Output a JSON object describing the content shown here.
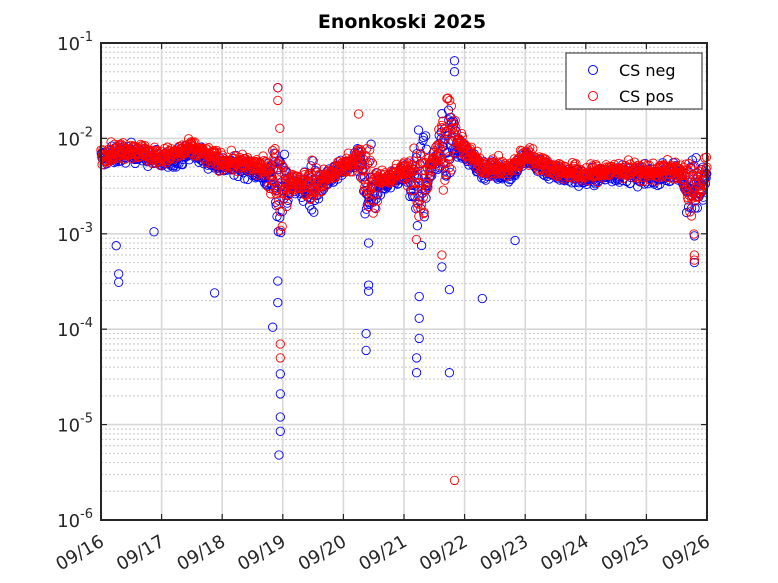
{
  "chart_data": {
    "type": "scatter",
    "title": "Enonkoski 2025",
    "xlabel": "",
    "ylabel": "",
    "yscale": "log",
    "ylim": [
      1e-06,
      0.1
    ],
    "xlim": [
      "2025-09-16",
      "2025-09-26"
    ],
    "x_tick_labels": [
      "09/16",
      "09/17",
      "09/18",
      "09/19",
      "09/20",
      "09/21",
      "09/22",
      "09/23",
      "09/24",
      "09/25",
      "09/26"
    ],
    "y_tick_labels": [
      {
        "base": "10",
        "exp": "-6"
      },
      {
        "base": "10",
        "exp": "-5"
      },
      {
        "base": "10",
        "exp": "-4"
      },
      {
        "base": "10",
        "exp": "-3"
      },
      {
        "base": "10",
        "exp": "-2"
      },
      {
        "base": "10",
        "exp": "-1"
      }
    ],
    "grid": true,
    "legend_position": "top-right",
    "marker": "open-circle",
    "series": [
      {
        "name": "CS neg",
        "color": "#0000ff",
        "baseline": [
          [
            "2025-09-16",
            0.0065
          ],
          [
            "2025-09-16T12:00",
            0.0075
          ],
          [
            "2025-09-17",
            0.006
          ],
          [
            "2025-09-17T12:00",
            0.0075
          ],
          [
            "2025-09-18",
            0.0055
          ],
          [
            "2025-09-18T12:00",
            0.005
          ],
          [
            "2025-09-18T18:00",
            0.004
          ],
          [
            "2025-09-19",
            0.0035
          ],
          [
            "2025-09-19T12:00",
            0.003
          ],
          [
            "2025-09-20",
            0.005
          ],
          [
            "2025-09-20T06:00",
            0.006
          ],
          [
            "2025-09-20T10:00",
            0.003
          ],
          [
            "2025-09-21",
            0.0045
          ],
          [
            "2025-09-21T06:00",
            0.003
          ],
          [
            "2025-09-21T12:00",
            0.006
          ],
          [
            "2025-09-21T18:00",
            0.011
          ],
          [
            "2025-09-22",
            0.0075
          ],
          [
            "2025-09-22T06:00",
            0.005
          ],
          [
            "2025-09-22T18:00",
            0.0045
          ],
          [
            "2025-09-23",
            0.0065
          ],
          [
            "2025-09-23T12:00",
            0.0045
          ],
          [
            "2025-09-24",
            0.004
          ],
          [
            "2025-09-24T12:00",
            0.0045
          ],
          [
            "2025-09-25",
            0.0042
          ],
          [
            "2025-09-25T12:00",
            0.0045
          ],
          [
            "2025-09-25T20:00",
            0.0025
          ],
          [
            "2025-09-26",
            0.0045
          ]
        ],
        "outliers": [
          [
            "2025-09-16T06:00",
            0.00075
          ],
          [
            "2025-09-16T07:00",
            0.00038
          ],
          [
            "2025-09-16T07:00",
            0.00031
          ],
          [
            "2025-09-16T21:00",
            0.00105
          ],
          [
            "2025-09-17T21:00",
            0.00024
          ],
          [
            "2025-09-18T20:00",
            0.000105
          ],
          [
            "2025-09-18T22:00",
            0.00032
          ],
          [
            "2025-09-18T22:00",
            0.00019
          ],
          [
            "2025-09-18T23:00",
            3.4e-05
          ],
          [
            "2025-09-18T23:00",
            2.1e-05
          ],
          [
            "2025-09-18T23:00",
            1.2e-05
          ],
          [
            "2025-09-18T23:00",
            8.5e-06
          ],
          [
            "2025-09-18T22:30",
            4.8e-06
          ],
          [
            "2025-09-18T22:00",
            0.034
          ],
          [
            "2025-09-20T10:00",
            0.00029
          ],
          [
            "2025-09-20T10:00",
            0.00025
          ],
          [
            "2025-09-20T09:00",
            9e-05
          ],
          [
            "2025-09-20T09:00",
            6e-05
          ],
          [
            "2025-09-20T10:00",
            0.0008
          ],
          [
            "2025-09-21T05:00",
            3.5e-05
          ],
          [
            "2025-09-21T05:00",
            5e-05
          ],
          [
            "2025-09-21T06:00",
            0.00013
          ],
          [
            "2025-09-21T06:00",
            8e-05
          ],
          [
            "2025-09-21T06:00",
            0.00022
          ],
          [
            "2025-09-21T18:00",
            3.5e-05
          ],
          [
            "2025-09-21T18:00",
            0.00026
          ],
          [
            "2025-09-21T15:00",
            0.00045
          ],
          [
            "2025-09-22T07:00",
            0.00021
          ],
          [
            "2025-09-22T20:00",
            0.00085
          ],
          [
            "2025-09-21T20:00",
            0.065
          ],
          [
            "2025-09-21T20:00",
            0.05
          ],
          [
            "2025-09-25T19:00",
            0.0005
          ],
          [
            "2025-09-25T19:00",
            0.00095
          ]
        ]
      },
      {
        "name": "CS pos",
        "color": "#ff0000",
        "baseline": [
          [
            "2025-09-16",
            0.0065
          ],
          [
            "2025-09-16T12:00",
            0.0075
          ],
          [
            "2025-09-17",
            0.006
          ],
          [
            "2025-09-17T12:00",
            0.0075
          ],
          [
            "2025-09-18",
            0.0055
          ],
          [
            "2025-09-18T12:00",
            0.005
          ],
          [
            "2025-09-18T18:00",
            0.0045
          ],
          [
            "2025-09-19",
            0.0035
          ],
          [
            "2025-09-19T12:00",
            0.003
          ],
          [
            "2025-09-20",
            0.005
          ],
          [
            "2025-09-20T06:00",
            0.006
          ],
          [
            "2025-09-20T10:00",
            0.003
          ],
          [
            "2025-09-21",
            0.0045
          ],
          [
            "2025-09-21T06:00",
            0.003
          ],
          [
            "2025-09-21T12:00",
            0.006
          ],
          [
            "2025-09-21T18:00",
            0.011
          ],
          [
            "2025-09-22",
            0.0075
          ],
          [
            "2025-09-22T06:00",
            0.005
          ],
          [
            "2025-09-22T18:00",
            0.0045
          ],
          [
            "2025-09-23",
            0.0065
          ],
          [
            "2025-09-23T12:00",
            0.0045
          ],
          [
            "2025-09-24",
            0.004
          ],
          [
            "2025-09-24T12:00",
            0.0045
          ],
          [
            "2025-09-25",
            0.0042
          ],
          [
            "2025-09-25T12:00",
            0.0045
          ],
          [
            "2025-09-25T20:00",
            0.0025
          ],
          [
            "2025-09-26",
            0.0045
          ]
        ],
        "outliers": [
          [
            "2025-09-18T22:00",
            0.034
          ],
          [
            "2025-09-18T22:00",
            0.025
          ],
          [
            "2025-09-18T23:00",
            5e-05
          ],
          [
            "2025-09-18T23:00",
            7e-05
          ],
          [
            "2025-09-20T06:00",
            0.018
          ],
          [
            "2025-09-21T20:00",
            2.6e-06
          ],
          [
            "2025-09-25T19:00",
            0.0006
          ],
          [
            "2025-09-25T19:00",
            0.00053
          ],
          [
            "2025-09-21T15:00",
            0.0006
          ]
        ]
      }
    ]
  }
}
